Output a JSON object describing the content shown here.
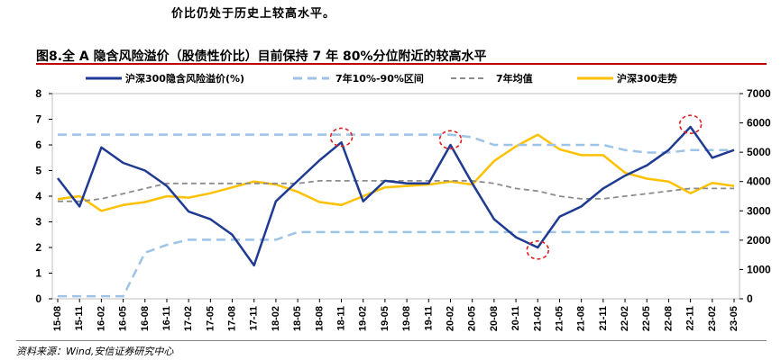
{
  "header": {
    "top_text": "价比仍处于历史上较高水平。",
    "figure_title": "图8.全 A 隐含风险溢价（股债性价比）目前保持 7 年 80%分位附近的较高水平",
    "source": "资料来源：Wind,安信证券研究中心"
  },
  "chart_data": {
    "type": "line",
    "title": "",
    "xlabel": "",
    "ylabel": "",
    "ylim": [
      0,
      8
    ],
    "y2lim": [
      0,
      7000
    ],
    "yticks": [
      "0",
      "1",
      "2",
      "3",
      "4",
      "5",
      "6",
      "7",
      "8"
    ],
    "y2ticks": [
      "0",
      "1000",
      "2000",
      "3000",
      "4000",
      "5000",
      "6000",
      "7000"
    ],
    "categories": [
      "15-08",
      "15-11",
      "16-02",
      "16-05",
      "16-08",
      "16-11",
      "17-02",
      "17-05",
      "17-08",
      "17-11",
      "18-02",
      "18-05",
      "18-08",
      "18-11",
      "19-02",
      "19-05",
      "19-08",
      "19-11",
      "20-02",
      "20-05",
      "20-08",
      "20-11",
      "21-02",
      "21-05",
      "21-08",
      "21-11",
      "22-02",
      "22-05",
      "22-08",
      "22-11",
      "23-02",
      "23-05"
    ],
    "legend_position": "top",
    "series": [
      {
        "name": "沪深300隐含风险溢价(%)",
        "axis": "left",
        "color": "#1f3a93",
        "values": [
          4.7,
          3.6,
          5.9,
          5.3,
          5.0,
          4.4,
          3.4,
          3.1,
          2.5,
          1.3,
          3.8,
          4.6,
          5.4,
          6.1,
          3.8,
          4.6,
          4.5,
          4.5,
          6.0,
          4.5,
          3.1,
          2.4,
          2.0,
          3.2,
          3.6,
          4.3,
          4.8,
          5.2,
          5.8,
          6.7,
          5.5,
          5.8
        ]
      },
      {
        "name": "7年10%-90%区间 上沿",
        "axis": "left",
        "color": "#9dc3e6",
        "values": [
          6.4,
          6.4,
          6.4,
          6.4,
          6.4,
          6.4,
          6.4,
          6.4,
          6.4,
          6.4,
          6.4,
          6.4,
          6.4,
          6.4,
          6.4,
          6.4,
          6.4,
          6.4,
          6.4,
          6.3,
          6.0,
          6.0,
          6.0,
          6.0,
          6.0,
          6.0,
          5.8,
          5.7,
          5.7,
          5.8,
          5.8,
          5.8
        ]
      },
      {
        "name": "7年10%-90%区间 下沿",
        "axis": "left",
        "color": "#9dc3e6",
        "values": [
          0.1,
          0.1,
          0.1,
          0.1,
          1.8,
          2.1,
          2.3,
          2.3,
          2.3,
          2.3,
          2.3,
          2.6,
          2.6,
          2.6,
          2.6,
          2.6,
          2.6,
          2.6,
          2.6,
          2.6,
          2.6,
          2.6,
          2.6,
          2.6,
          2.6,
          2.6,
          2.6,
          2.6,
          2.6,
          2.6,
          2.6,
          2.6
        ]
      },
      {
        "name": "7年均值",
        "axis": "left",
        "color": "#8c8c8c",
        "values": [
          3.8,
          3.8,
          3.9,
          4.1,
          4.3,
          4.5,
          4.5,
          4.5,
          4.5,
          4.5,
          4.5,
          4.5,
          4.6,
          4.6,
          4.6,
          4.6,
          4.6,
          4.6,
          4.6,
          4.6,
          4.5,
          4.3,
          4.2,
          4.0,
          3.9,
          3.9,
          4.0,
          4.1,
          4.2,
          4.3,
          4.3,
          4.3
        ]
      },
      {
        "name": "沪深300走势",
        "axis": "right",
        "color": "#ffc000",
        "values": [
          3400,
          3500,
          3000,
          3200,
          3300,
          3500,
          3450,
          3600,
          3800,
          4000,
          3900,
          3650,
          3300,
          3200,
          3500,
          3800,
          3850,
          3900,
          4000,
          3900,
          4700,
          5200,
          5600,
          5100,
          4900,
          4900,
          4300,
          4100,
          4000,
          3600,
          3950,
          3850
        ]
      }
    ],
    "highlight_circles": [
      {
        "x": "18-11",
        "y": 6.3
      },
      {
        "x": "20-02",
        "y": 6.2
      },
      {
        "x": "21-02",
        "y": 1.9
      },
      {
        "x": "22-11",
        "y": 6.8
      }
    ],
    "legend": {
      "risk_premium": "沪深300隐含风险溢价(%)",
      "band": "7年10%-90%区间",
      "mean": "7年均值",
      "index": "沪深300走势"
    }
  }
}
